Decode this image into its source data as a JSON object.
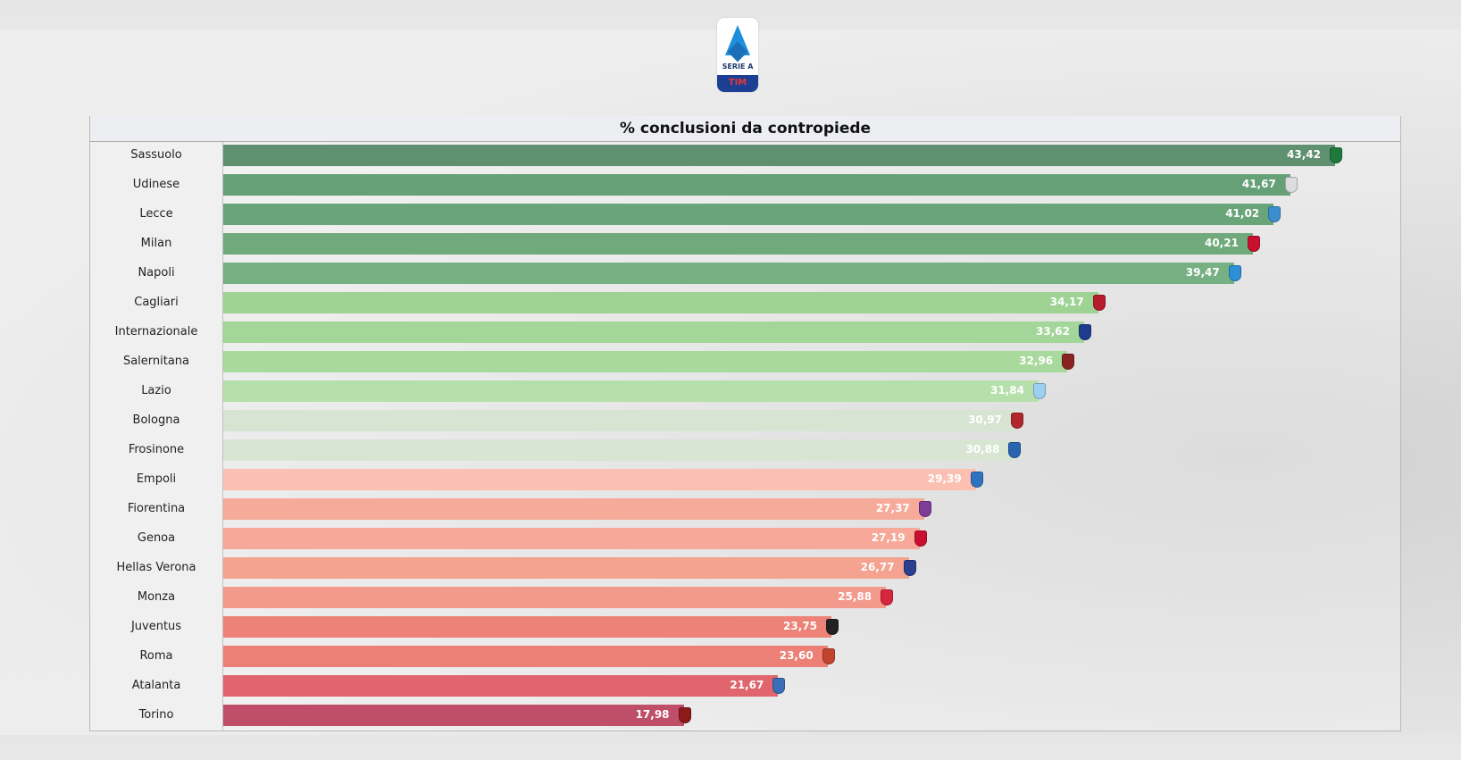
{
  "logo": {
    "line1": "SERIE A",
    "line2": "TIM"
  },
  "chart_data": {
    "type": "bar",
    "orientation": "horizontal",
    "title": "% conclusioni da contropiede",
    "xlim": [
      0,
      43.42
    ],
    "grid": false,
    "categories": [
      "Sassuolo",
      "Udinese",
      "Lecce",
      "Milan",
      "Napoli",
      "Cagliari",
      "Internazionale",
      "Salernitana",
      "Lazio",
      "Bologna",
      "Frosinone",
      "Empoli",
      "Fiorentina",
      "Genoa",
      "Hellas Verona",
      "Monza",
      "Juventus",
      "Roma",
      "Atalanta",
      "Torino"
    ],
    "values": [
      43.42,
      41.67,
      41.02,
      40.21,
      39.47,
      34.17,
      33.62,
      32.96,
      31.84,
      30.97,
      30.88,
      29.39,
      27.37,
      27.19,
      26.77,
      25.88,
      23.75,
      23.6,
      21.67,
      17.98
    ],
    "value_labels": [
      "43,42",
      "41,67",
      "41,02",
      "40,21",
      "39,47",
      "34,17",
      "33,62",
      "32,96",
      "31,84",
      "30,97",
      "30,88",
      "29,39",
      "27,37",
      "27,19",
      "26,77",
      "25,88",
      "23,75",
      "23,60",
      "21,67",
      "17,98"
    ],
    "bar_colors": [
      "#5f9170",
      "#66a077",
      "#6aa579",
      "#70aa7c",
      "#77b082",
      "#9ed394",
      "#a3d699",
      "#a9da9d",
      "#b6e0ab",
      "#d6e4d1",
      "#d8e5d3",
      "#fcc0b3",
      "#f6aa9a",
      "#f7a898",
      "#f5a291",
      "#f39a8c",
      "#ec8278",
      "#ec8076",
      "#e0656c",
      "#bf4e68"
    ],
    "crest_colors": [
      "#1e7a3c",
      "#dddddd",
      "#3b8fd0",
      "#c8102e",
      "#2d8fd8",
      "#b71c2c",
      "#1f3b8c",
      "#8b2323",
      "#9cd0f0",
      "#b0282e",
      "#2a64b0",
      "#2f73c0",
      "#7d3c98",
      "#c8102e",
      "#2b3f8f",
      "#d7263d",
      "#222222",
      "#c0452c",
      "#3a6fb8",
      "#8b1a1a"
    ]
  }
}
